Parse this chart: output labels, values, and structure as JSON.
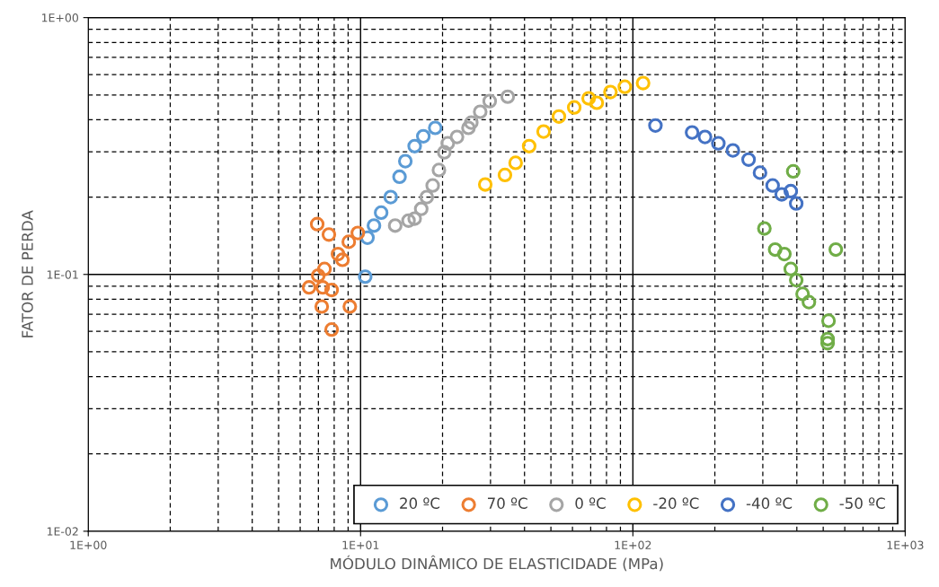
{
  "chart_data": {
    "type": "scatter",
    "xlabel": "MÓDULO DINÂMICO DE ELASTICIDADE (MPa)",
    "ylabel": "FATOR DE PERDA",
    "log": "xy",
    "grid": true,
    "legend": "bottom right",
    "marker": "circle",
    "xlim": [
      1,
      1000
    ],
    "ylim": [
      0.01,
      1
    ],
    "xticks": [
      {
        "value": 1,
        "label": "1E+00"
      },
      {
        "value": 10,
        "label": "1E+01"
      },
      {
        "value": 100,
        "label": "1E+02"
      },
      {
        "value": 1000,
        "label": "1E+03"
      }
    ],
    "yticks": [
      {
        "value": 0.01,
        "label": "1E-02"
      },
      {
        "value": 0.1,
        "label": "1E-01"
      },
      {
        "value": 1,
        "label": "1E+00"
      }
    ],
    "series": [
      {
        "name": "20 ºC",
        "color": "#5b9bd5",
        "x": [
          10.4,
          10.6,
          11.2,
          11.9,
          12.9,
          13.9,
          14.6,
          15.8,
          17.0,
          18.8
        ],
        "values": [
          0.098,
          0.139,
          0.155,
          0.174,
          0.2,
          0.24,
          0.276,
          0.316,
          0.345,
          0.372
        ]
      },
      {
        "name": "70 ºC",
        "color": "#ed7d31",
        "x": [
          6.93,
          7.65,
          8.26,
          9.05,
          9.77,
          6.99,
          6.47,
          7.26,
          7.83,
          7.2,
          9.13,
          7.83,
          7.37,
          8.58
        ],
        "values": [
          0.157,
          0.143,
          0.12,
          0.134,
          0.145,
          0.099,
          0.089,
          0.089,
          0.087,
          0.075,
          0.075,
          0.061,
          0.105,
          0.114
        ]
      },
      {
        "name": "0 ºC",
        "color": "#a5a5a5",
        "x": [
          13.4,
          15.0,
          15.8,
          16.7,
          17.5,
          18.4,
          19.4,
          20.3,
          20.9,
          22.6,
          24.9,
          25.5,
          27.5,
          29.8,
          34.7
        ],
        "values": [
          0.155,
          0.162,
          0.165,
          0.18,
          0.2,
          0.222,
          0.255,
          0.299,
          0.324,
          0.343,
          0.372,
          0.39,
          0.43,
          0.473,
          0.492
        ]
      },
      {
        "name": "-20 ºC",
        "color": "#ffc000",
        "x": [
          28.7,
          33.9,
          37.1,
          41.6,
          47.0,
          53.5,
          60.9,
          68.8,
          73.7,
          82.7,
          93.4,
          109
        ],
        "values": [
          0.224,
          0.244,
          0.272,
          0.316,
          0.36,
          0.412,
          0.447,
          0.485,
          0.466,
          0.513,
          0.538,
          0.556
        ]
      },
      {
        "name": "-40 ºC",
        "color": "#4472c4",
        "x": [
          121,
          165,
          184,
          206,
          233,
          266,
          293,
          326,
          352,
          380,
          398
        ],
        "values": [
          0.38,
          0.357,
          0.343,
          0.324,
          0.304,
          0.28,
          0.249,
          0.222,
          0.205,
          0.211,
          0.189
        ]
      },
      {
        "name": "-50 ºC",
        "color": "#70ad47",
        "x": [
          388,
          304,
          333,
          360,
          380,
          398,
          420,
          443,
          556,
          523,
          519,
          519
        ],
        "values": [
          0.252,
          0.151,
          0.125,
          0.12,
          0.105,
          0.095,
          0.084,
          0.078,
          0.125,
          0.066,
          0.056,
          0.054
        ]
      }
    ]
  }
}
